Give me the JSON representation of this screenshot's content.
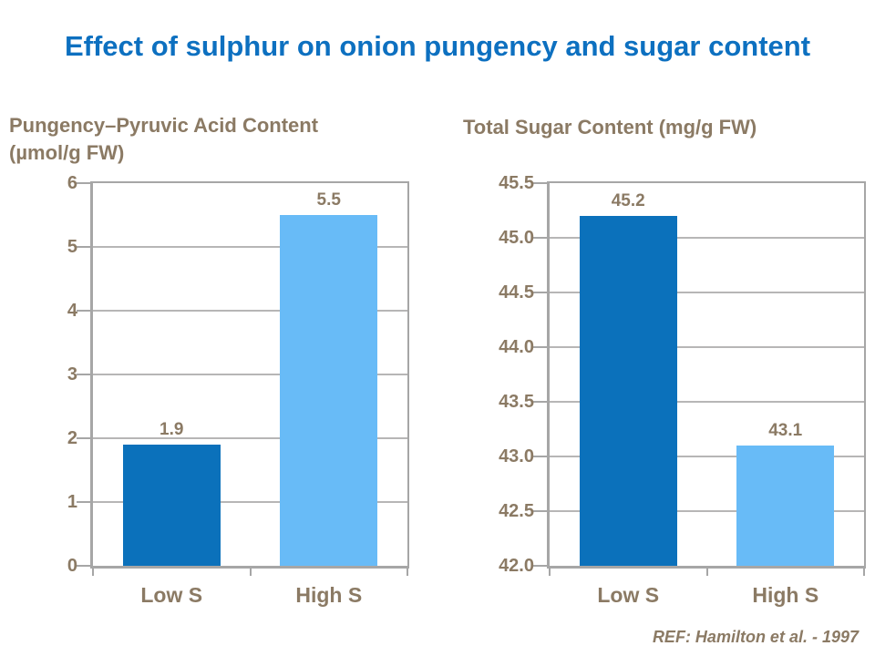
{
  "slide": {
    "background": "#ffffff"
  },
  "title": {
    "text": "Effect of sulphur on onion pungency and sugar content",
    "color": "#0d70c0"
  },
  "footer": {
    "text": "REF: Hamilton et al. - 1997",
    "color": "#8b7a64"
  },
  "colors": {
    "bar_low_s": "#0b71bb",
    "bar_high_s": "#68bbf7",
    "label_brown": "#8b7a64",
    "gridline": "#b7b6b6",
    "axis": "#a6a6a6",
    "title_blue": "#0d70c0"
  },
  "chart_data": [
    {
      "type": "bar",
      "title": "Pungency–Pyruvic Acid Content (µmol/g FW)",
      "title_lines": [
        "Pungency–Pyruvic Acid Content",
        "(µmol/g FW)"
      ],
      "categories": [
        "Low S",
        "High S"
      ],
      "values": [
        1.9,
        5.5
      ],
      "data_labels": [
        "1.9",
        "5.5"
      ],
      "bar_colors": [
        "#0b71bb",
        "#68bbf7"
      ],
      "xlabel": "",
      "ylabel": "Pungency–Pyruvic Acid Content (µmol/g FW)",
      "ylim": [
        0,
        6
      ],
      "ytick_step": 1,
      "yticks": [
        "6",
        "5",
        "4",
        "3",
        "2",
        "1",
        "0"
      ],
      "grid": true,
      "legend": "none"
    },
    {
      "type": "bar",
      "title": "Total Sugar Content (mg/g FW)",
      "title_lines": [
        "Total Sugar Content (mg/g FW)"
      ],
      "categories": [
        "Low S",
        "High S"
      ],
      "values": [
        45.2,
        43.1
      ],
      "data_labels": [
        "45.2",
        "43.1"
      ],
      "bar_colors": [
        "#0b71bb",
        "#68bbf7"
      ],
      "xlabel": "",
      "ylabel": "Total Sugar Content (mg/g FW)",
      "ylim": [
        42,
        45.5
      ],
      "ytick_step": 0.5,
      "yticks": [
        "45.5",
        "45.0",
        "44.5",
        "44.0",
        "43.5",
        "43.0",
        "42.5",
        "42.0"
      ],
      "grid": true,
      "legend": "none"
    }
  ]
}
